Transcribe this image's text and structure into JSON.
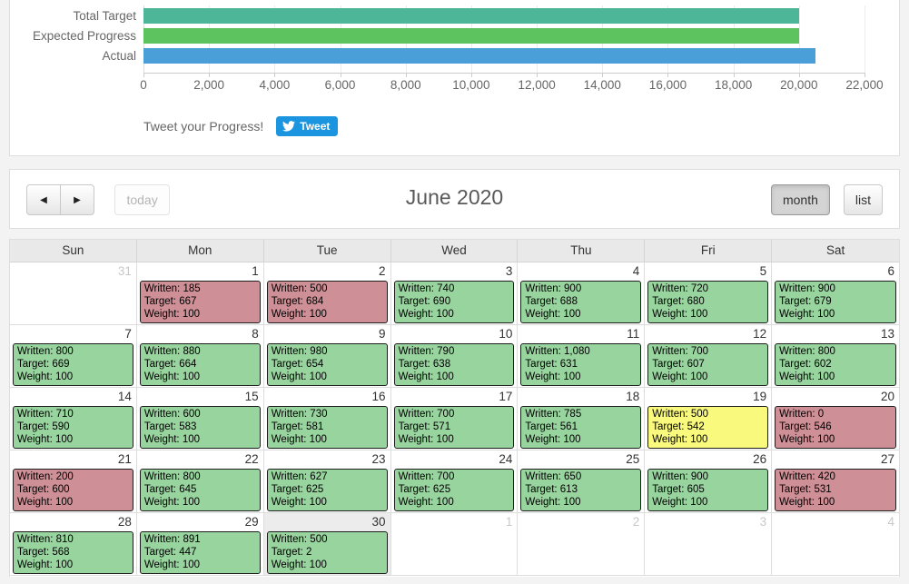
{
  "chart": {
    "chart_data": {
      "type": "bar",
      "orientation": "horizontal",
      "categories": [
        "Total Target",
        "Expected Progress",
        "Actual"
      ],
      "values": [
        20000,
        20000,
        20498
      ],
      "series_colors": [
        "#4db698",
        "#5cc35f",
        "#4a9fd8"
      ],
      "title": "",
      "xlabel": "",
      "ylabel": "",
      "xlim": [
        0,
        22000
      ],
      "x_tick_labels": [
        "0",
        "2,000",
        "4,000",
        "6,000",
        "8,000",
        "10,000",
        "12,000",
        "14,000",
        "16,000",
        "18,000",
        "20,000",
        "22,000"
      ],
      "grid": true,
      "legend": false
    },
    "tweet_label": "Tweet your Progress!",
    "tweet_button_label": "Tweet"
  },
  "toolbar": {
    "prev_label": "◀",
    "next_label": "▶",
    "today_label": "today",
    "title": "June 2020",
    "month_label": "month",
    "list_label": "list"
  },
  "calendar": {
    "day_headers": [
      "Sun",
      "Mon",
      "Tue",
      "Wed",
      "Thu",
      "Fri",
      "Sat"
    ],
    "event_field_labels": {
      "written": "Written:",
      "target": "Target:",
      "weight": "Weight:"
    },
    "status_colors": {
      "green": "#98d49e",
      "red": "#cf8f96",
      "yellow": "#f9f97e"
    },
    "weeks": [
      [
        {
          "day": "31",
          "other_month": true
        },
        {
          "day": "1",
          "event": {
            "written": "185",
            "target": "667",
            "weight": "100",
            "status": "red"
          }
        },
        {
          "day": "2",
          "event": {
            "written": "500",
            "target": "684",
            "weight": "100",
            "status": "red"
          }
        },
        {
          "day": "3",
          "event": {
            "written": "740",
            "target": "690",
            "weight": "100",
            "status": "green"
          }
        },
        {
          "day": "4",
          "event": {
            "written": "900",
            "target": "688",
            "weight": "100",
            "status": "green"
          }
        },
        {
          "day": "5",
          "event": {
            "written": "720",
            "target": "680",
            "weight": "100",
            "status": "green"
          }
        },
        {
          "day": "6",
          "event": {
            "written": "900",
            "target": "679",
            "weight": "100",
            "status": "green"
          }
        }
      ],
      [
        {
          "day": "7",
          "event": {
            "written": "800",
            "target": "669",
            "weight": "100",
            "status": "green"
          }
        },
        {
          "day": "8",
          "event": {
            "written": "880",
            "target": "664",
            "weight": "100",
            "status": "green"
          }
        },
        {
          "day": "9",
          "event": {
            "written": "980",
            "target": "654",
            "weight": "100",
            "status": "green"
          }
        },
        {
          "day": "10",
          "event": {
            "written": "790",
            "target": "638",
            "weight": "100",
            "status": "green"
          }
        },
        {
          "day": "11",
          "event": {
            "written": "1,080",
            "target": "631",
            "weight": "100",
            "status": "green"
          }
        },
        {
          "day": "12",
          "event": {
            "written": "700",
            "target": "607",
            "weight": "100",
            "status": "green"
          }
        },
        {
          "day": "13",
          "event": {
            "written": "800",
            "target": "602",
            "weight": "100",
            "status": "green"
          }
        }
      ],
      [
        {
          "day": "14",
          "event": {
            "written": "710",
            "target": "590",
            "weight": "100",
            "status": "green"
          }
        },
        {
          "day": "15",
          "event": {
            "written": "600",
            "target": "583",
            "weight": "100",
            "status": "green"
          }
        },
        {
          "day": "16",
          "event": {
            "written": "730",
            "target": "581",
            "weight": "100",
            "status": "green"
          }
        },
        {
          "day": "17",
          "event": {
            "written": "700",
            "target": "571",
            "weight": "100",
            "status": "green"
          }
        },
        {
          "day": "18",
          "event": {
            "written": "785",
            "target": "561",
            "weight": "100",
            "status": "green"
          }
        },
        {
          "day": "19",
          "event": {
            "written": "500",
            "target": "542",
            "weight": "100",
            "status": "yellow"
          }
        },
        {
          "day": "20",
          "event": {
            "written": "0",
            "target": "546",
            "weight": "100",
            "status": "red"
          }
        }
      ],
      [
        {
          "day": "21",
          "event": {
            "written": "200",
            "target": "600",
            "weight": "100",
            "status": "red"
          }
        },
        {
          "day": "22",
          "event": {
            "written": "800",
            "target": "645",
            "weight": "100",
            "status": "green"
          }
        },
        {
          "day": "23",
          "event": {
            "written": "627",
            "target": "625",
            "weight": "100",
            "status": "green"
          }
        },
        {
          "day": "24",
          "event": {
            "written": "700",
            "target": "625",
            "weight": "100",
            "status": "green"
          }
        },
        {
          "day": "25",
          "event": {
            "written": "650",
            "target": "613",
            "weight": "100",
            "status": "green"
          }
        },
        {
          "day": "26",
          "event": {
            "written": "900",
            "target": "605",
            "weight": "100",
            "status": "green"
          }
        },
        {
          "day": "27",
          "event": {
            "written": "420",
            "target": "531",
            "weight": "100",
            "status": "red"
          }
        }
      ],
      [
        {
          "day": "28",
          "event": {
            "written": "810",
            "target": "568",
            "weight": "100",
            "status": "green"
          }
        },
        {
          "day": "29",
          "event": {
            "written": "891",
            "target": "447",
            "weight": "100",
            "status": "green"
          }
        },
        {
          "day": "30",
          "today": true,
          "event": {
            "written": "500",
            "target": "2",
            "weight": "100",
            "status": "green"
          }
        },
        {
          "day": "1",
          "other_month": true
        },
        {
          "day": "2",
          "other_month": true
        },
        {
          "day": "3",
          "other_month": true
        },
        {
          "day": "4",
          "other_month": true
        }
      ]
    ]
  }
}
